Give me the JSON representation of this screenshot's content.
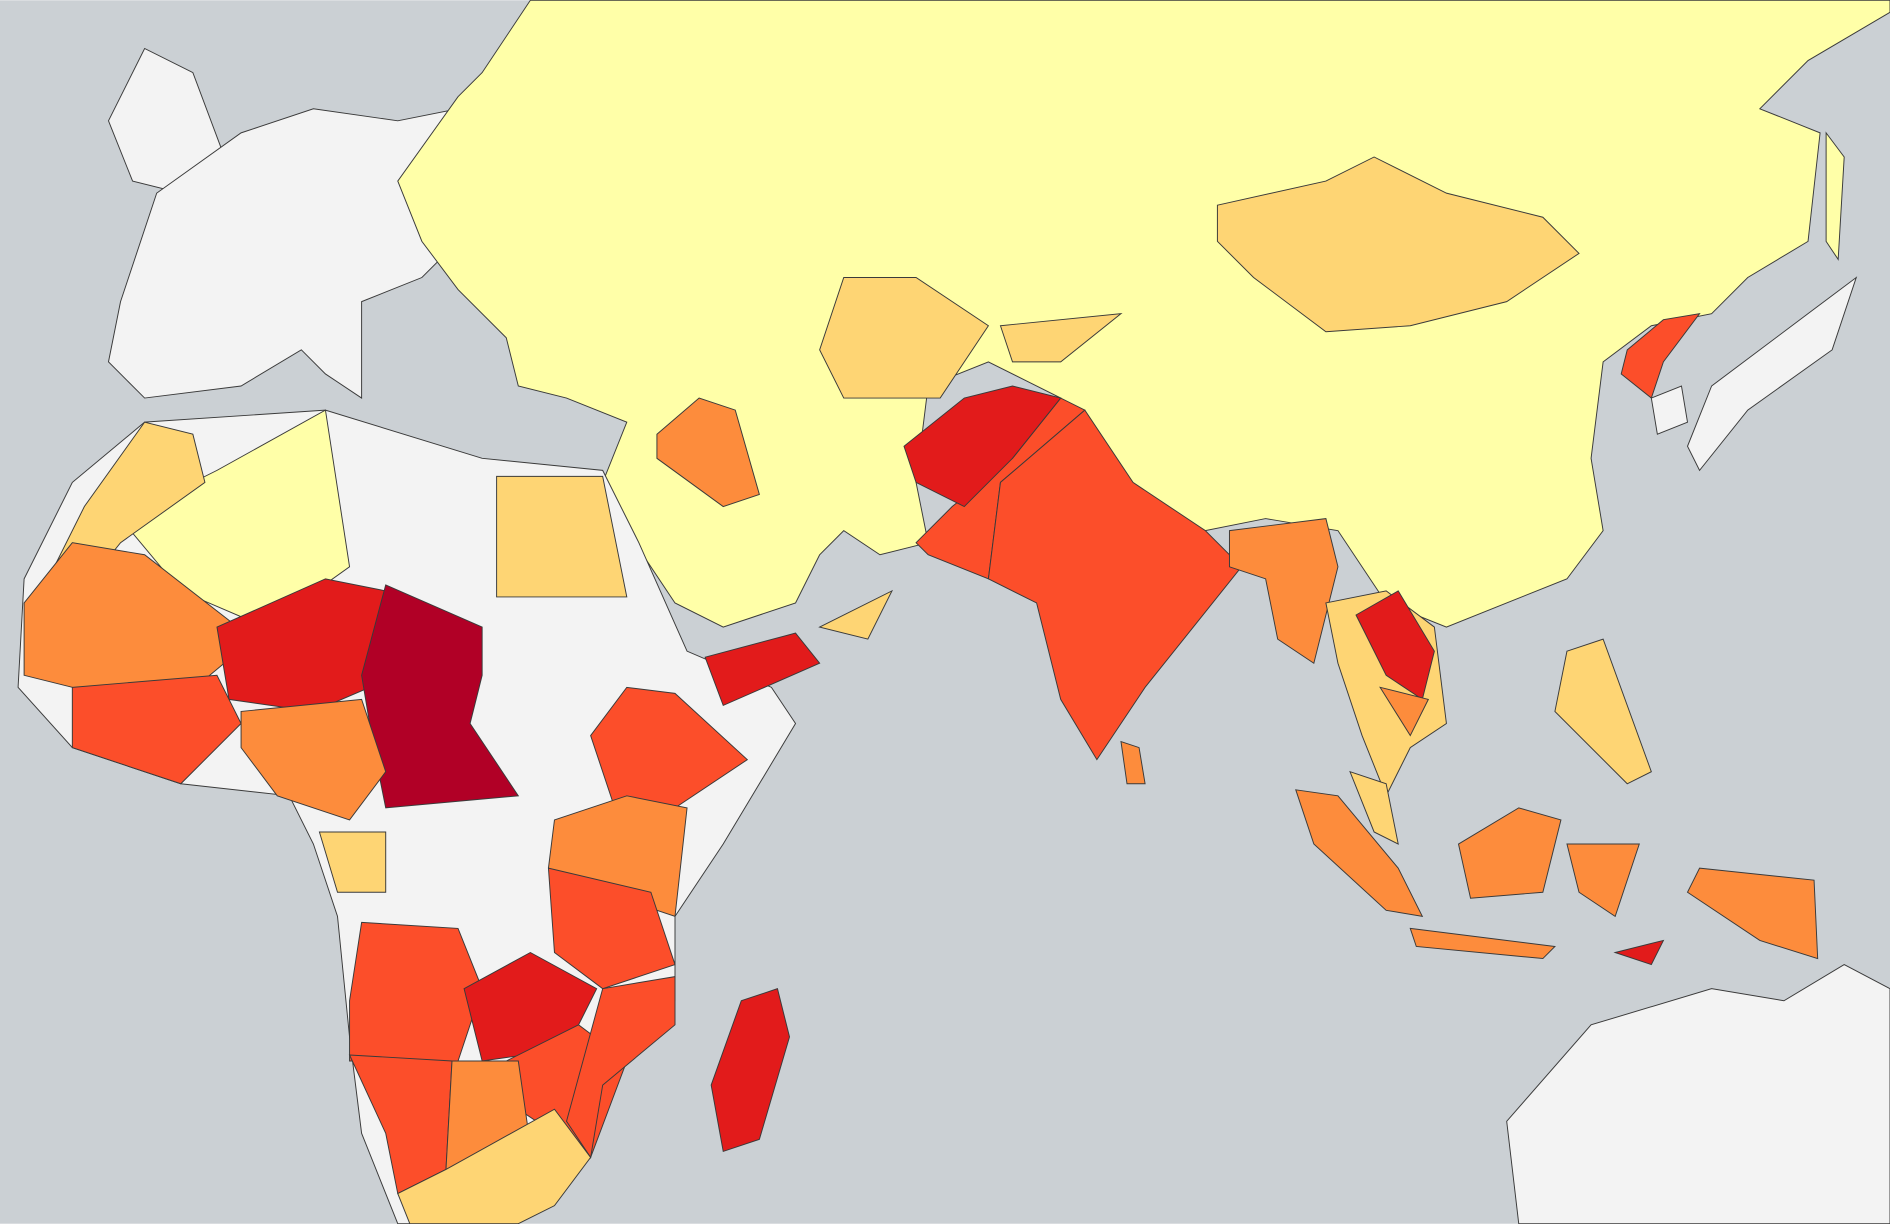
{
  "map": {
    "ocean_color": "#cbd0d4",
    "border_color": "#3a3a3a",
    "palette": [
      "#f3f3f3",
      "#ffffa8",
      "#fed574",
      "#fd8c3c",
      "#fc4e2a",
      "#e21b1b",
      "#b10026"
    ]
  }
}
